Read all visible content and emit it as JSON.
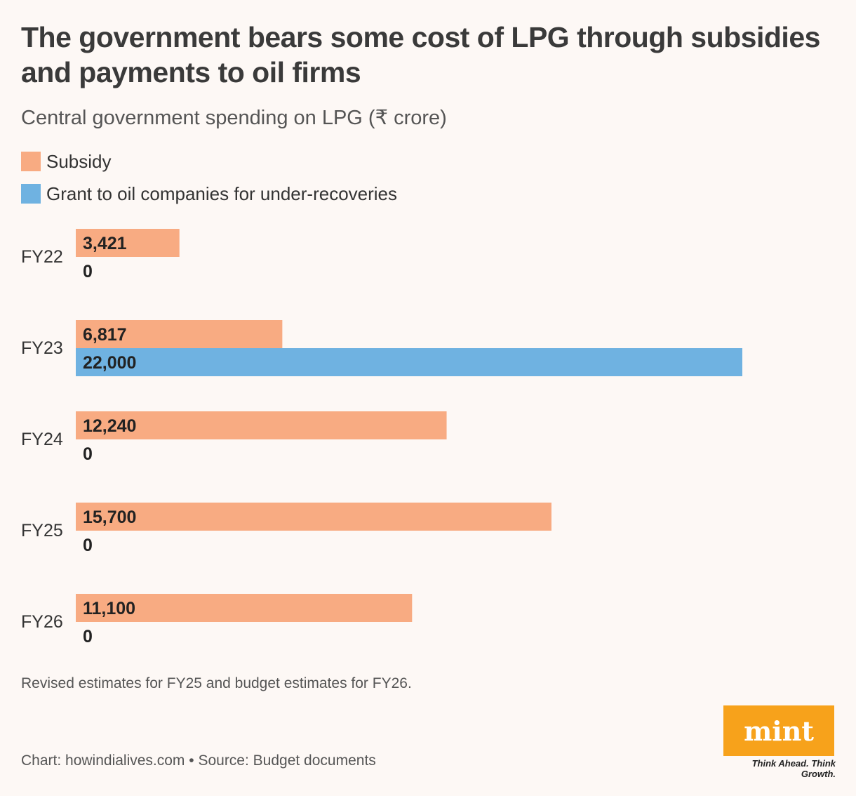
{
  "header": {
    "title": "The government bears some cost of LPG through subsidies and payments to oil firms",
    "subtitle": "Central government spending on LPG (₹ crore)"
  },
  "legend": [
    {
      "label": "Subsidy",
      "color": "#f8ab82"
    },
    {
      "label": "Grant to oil companies for under-recoveries",
      "color": "#6fb2e1"
    }
  ],
  "chart_data": {
    "type": "bar",
    "orientation": "horizontal",
    "categories": [
      "FY22",
      "FY23",
      "FY24",
      "FY25",
      "FY26"
    ],
    "series": [
      {
        "name": "Subsidy",
        "color": "#f8ab82",
        "values": [
          3421,
          6817,
          12240,
          15700,
          11100
        ],
        "labels": [
          "3,421",
          "6,817",
          "12,240",
          "15,700",
          "11,100"
        ]
      },
      {
        "name": "Grant to oil companies for under-recoveries",
        "color": "#6fb2e1",
        "values": [
          0,
          22000,
          0,
          0,
          0
        ],
        "labels": [
          "0",
          "22,000",
          "0",
          "0",
          "0"
        ]
      }
    ],
    "xlim": [
      0,
      22000
    ],
    "grid": false,
    "axis_visible": false
  },
  "footer": {
    "note": "Revised estimates for FY25 and budget estimates for FY26.",
    "credit": "Chart: howindialives.com • Source: Budget documents",
    "logo_text": "mint",
    "tagline": "Think Ahead. Think Growth."
  }
}
